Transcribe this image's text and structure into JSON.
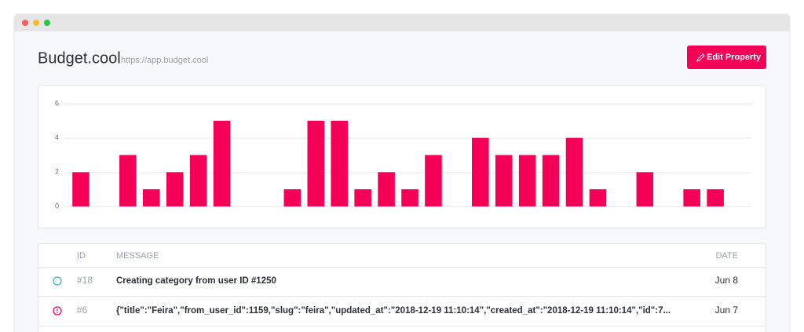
{
  "header": {
    "title": "Budget.cool",
    "url": "https://app.budget.cool",
    "button": "Edit Property"
  },
  "chart_data": {
    "type": "bar",
    "categories": [
      null,
      null,
      null,
      null,
      null,
      null,
      null,
      null,
      null,
      null,
      null,
      null,
      null,
      null,
      null,
      null,
      null,
      null,
      null,
      null,
      null,
      null,
      null,
      null,
      null,
      null,
      null,
      null,
      null
    ],
    "values": [
      2,
      0,
      3,
      1,
      2,
      3,
      5,
      0,
      0,
      1,
      5,
      5,
      1,
      2,
      1,
      3,
      0,
      4,
      3,
      3,
      3,
      4,
      1,
      0,
      2,
      0,
      1,
      1,
      0
    ],
    "color": "#f50057",
    "ylim": [
      0,
      6
    ],
    "yticks": [
      0,
      2,
      4,
      6
    ],
    "grid": true
  },
  "table": {
    "columns": [
      "ID",
      "MESSAGE",
      "DATE"
    ],
    "rows": [
      [
        "#18",
        "Creating category from user ID #1250",
        "Jun 8"
      ],
      [
        "#6",
        "{\"title\":\"Feira\",\"from_user_id\":1159,\"slug\":\"feira\",\"updated_at\":\"2018-12-19 11:10:14\",\"created_at\":\"2018-12-19 11:10:14\",\"id\":7...",
        "Jun 7"
      ]
    ]
  }
}
